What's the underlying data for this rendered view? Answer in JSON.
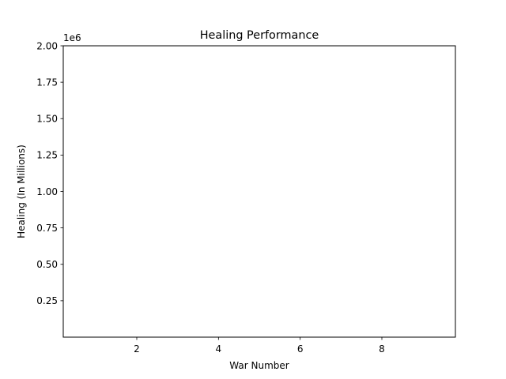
{
  "chart_data": {
    "type": "line",
    "title": "Healing Performance",
    "xlabel": "War Number",
    "ylabel": "Healing (In Millions)",
    "y_offset_text": "1e6",
    "xlim": [
      0.2,
      9.8
    ],
    "ylim": [
      0,
      2000000
    ],
    "x_ticks": [
      2,
      4,
      6,
      8
    ],
    "x_tick_labels": [
      "2",
      "4",
      "6",
      "8"
    ],
    "y_ticks": [
      250000,
      500000,
      750000,
      1000000,
      1250000,
      1500000,
      1750000,
      2000000
    ],
    "y_tick_labels": [
      "0.25",
      "0.50",
      "0.75",
      "1.00",
      "1.25",
      "1.50",
      "1.75",
      "2.00"
    ],
    "grid": false,
    "series": []
  }
}
